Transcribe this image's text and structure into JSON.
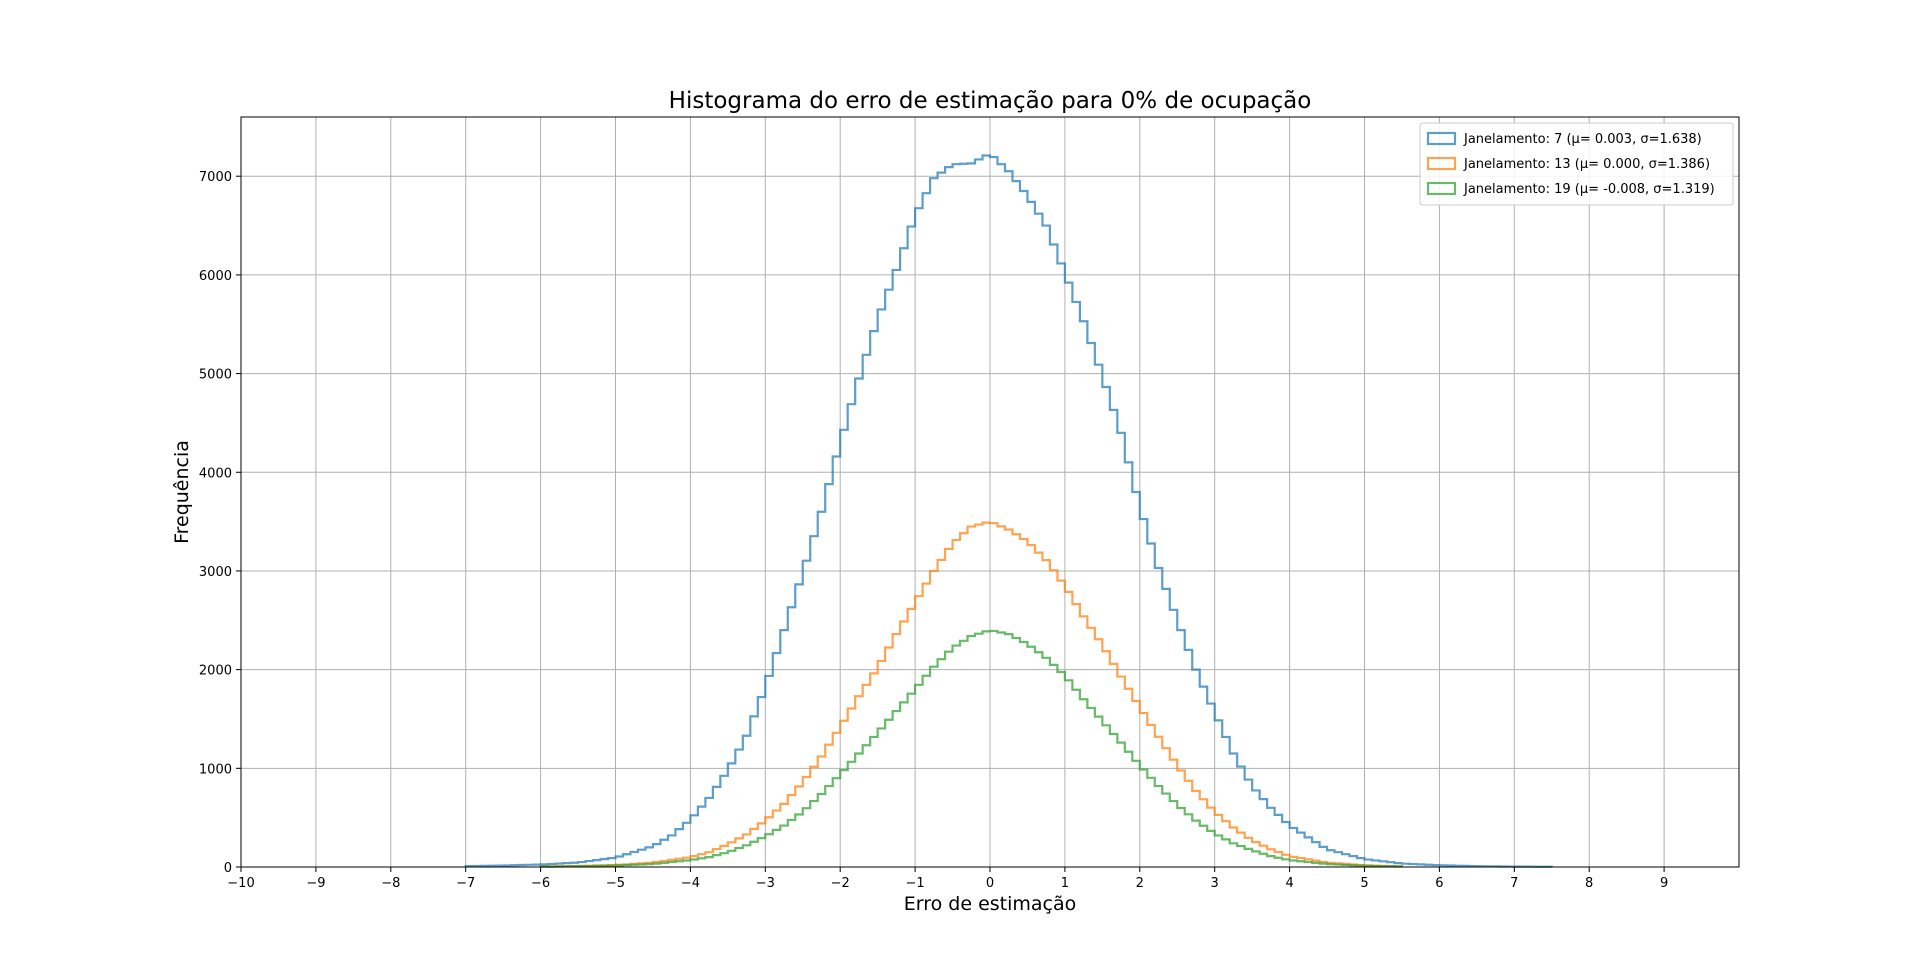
{
  "chart_data": {
    "type": "histogram-step",
    "title": "Histograma do erro de estimação para 0% de ocupação",
    "xlabel": "Erro de estimação",
    "ylabel": "Frequência",
    "xlim": [
      -10,
      10
    ],
    "ylim": [
      0,
      7600
    ],
    "x_ticks": [
      -10,
      -9,
      -8,
      -7,
      -6,
      -5,
      -4,
      -3,
      -2,
      -1,
      0,
      1,
      2,
      3,
      4,
      5,
      6,
      7,
      8,
      9
    ],
    "y_ticks": [
      0,
      1000,
      2000,
      3000,
      4000,
      5000,
      6000,
      7000
    ],
    "grid": true,
    "legend_position": "top-right",
    "series": [
      {
        "name": "Janelamento: 7 (μ= 0.003, σ=1.638)",
        "color": "#1f77b4",
        "x": [
          -7,
          -6.5,
          -6,
          -5.5,
          -5,
          -4.5,
          -4.25,
          -4,
          -3.75,
          -3.5,
          -3.25,
          -3,
          -2.75,
          -2.5,
          -2.25,
          -2,
          -1.75,
          -1.5,
          -1.25,
          -1,
          -0.75,
          -0.5,
          -0.25,
          0,
          0.25,
          0.5,
          0.75,
          1,
          1.25,
          1.5,
          1.75,
          2,
          2.25,
          2.5,
          2.75,
          3,
          3.25,
          3.5,
          3.75,
          4,
          4.25,
          4.5,
          5,
          5.5,
          6,
          6.5,
          7,
          7.5
        ],
        "values": [
          8,
          15,
          25,
          45,
          95,
          210,
          320,
          480,
          700,
          980,
          1330,
          1820,
          2400,
          2980,
          3600,
          4300,
          4950,
          5550,
          6050,
          6600,
          6980,
          7120,
          7130,
          7230,
          7050,
          6800,
          6500,
          6020,
          5530,
          4980,
          4400,
          3650,
          3030,
          2500,
          2000,
          1570,
          1150,
          820,
          600,
          420,
          300,
          180,
          80,
          35,
          18,
          8,
          4,
          2
        ]
      },
      {
        "name": "Janelamento: 13 (μ= 0.000, σ=1.386)",
        "color": "#ff7f0e",
        "x": [
          -6,
          -5.5,
          -5,
          -4.5,
          -4,
          -3.75,
          -3.5,
          -3.25,
          -3,
          -2.75,
          -2.5,
          -2.25,
          -2,
          -1.75,
          -1.5,
          -1.25,
          -1,
          -0.75,
          -0.5,
          -0.25,
          0,
          0.25,
          0.5,
          0.75,
          1,
          1.25,
          1.5,
          1.75,
          2,
          2.25,
          2.5,
          2.75,
          3,
          3.25,
          3.5,
          3.75,
          4,
          4.5,
          5,
          5.5
        ],
        "values": [
          5,
          10,
          20,
          45,
          100,
          150,
          230,
          330,
          470,
          640,
          860,
          1120,
          1420,
          1730,
          2020,
          2360,
          2680,
          3000,
          3280,
          3450,
          3500,
          3420,
          3300,
          3110,
          2850,
          2540,
          2250,
          1930,
          1620,
          1320,
          1030,
          770,
          560,
          400,
          270,
          180,
          110,
          45,
          18,
          6
        ]
      },
      {
        "name": "Janelamento: 19 (μ= -0.008, σ=1.319)",
        "color": "#2ca02c",
        "x": [
          -6,
          -5.5,
          -5,
          -4.5,
          -4,
          -3.75,
          -3.5,
          -3.25,
          -3,
          -2.75,
          -2.5,
          -2.25,
          -2,
          -1.75,
          -1.5,
          -1.25,
          -1,
          -0.75,
          -0.5,
          -0.25,
          0,
          0.25,
          0.5,
          0.75,
          1,
          1.25,
          1.5,
          1.75,
          2,
          2.25,
          2.5,
          2.75,
          3,
          3.25,
          3.5,
          3.75,
          4,
          4.5,
          5,
          5.5
        ],
        "values": [
          3,
          7,
          15,
          30,
          70,
          100,
          150,
          220,
          310,
          420,
          560,
          740,
          940,
          1150,
          1360,
          1580,
          1800,
          2030,
          2220,
          2340,
          2400,
          2360,
          2260,
          2120,
          1940,
          1700,
          1480,
          1260,
          1030,
          820,
          630,
          470,
          340,
          240,
          170,
          110,
          70,
          30,
          12,
          4
        ]
      }
    ]
  }
}
